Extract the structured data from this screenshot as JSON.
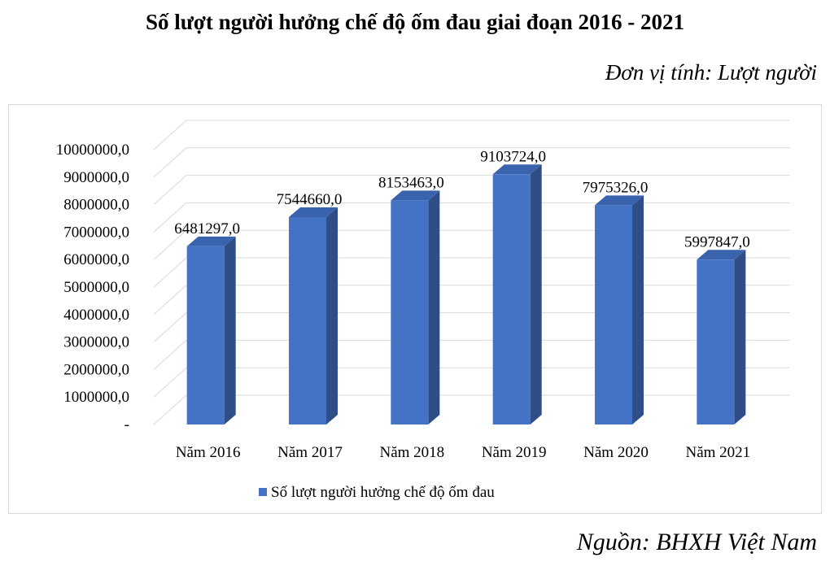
{
  "title": "Số lượt người hưởng chế độ ốm đau giai đoạn 2016 - 2021",
  "unit_note": "Đơn vị tính: Lượt người",
  "source_note": "Nguồn: BHXH Việt Nam",
  "colors": {
    "bar_front": "#4472c4",
    "bar_side": "#2f4d87",
    "bar_top": "#3a63ad",
    "grid": "#d9d9d9"
  },
  "chart_data": {
    "type": "bar",
    "title": "Số lượt người hưởng chế độ ốm đau giai đoạn 2016 - 2021",
    "categories": [
      "Năm 2016",
      "Năm 2017",
      "Năm 2018",
      "Năm 2019",
      "Năm 2020",
      "Năm 2021"
    ],
    "series": [
      {
        "name": "Số lượt người hưởng chế độ ốm đau",
        "values": [
          6481297.0,
          7544660.0,
          8153463.0,
          9103724.0,
          7975326.0,
          5997847.0
        ]
      }
    ],
    "data_labels": [
      "6481297,0",
      "7544660,0",
      "8153463,0",
      "9103724,0",
      "7975326,0",
      "5997847,0"
    ],
    "ylim": [
      0,
      10000000
    ],
    "y_ticks": [
      0,
      1000000,
      2000000,
      3000000,
      4000000,
      5000000,
      6000000,
      7000000,
      8000000,
      9000000,
      10000000
    ],
    "y_tick_labels": [
      "-",
      "1000000,0",
      "2000000,0",
      "3000000,0",
      "4000000,0",
      "5000000,0",
      "6000000,0",
      "7000000,0",
      "8000000,0",
      "9000000,0",
      "10000000,0"
    ],
    "grid": true,
    "three_d": true,
    "legend_position": "bottom"
  }
}
